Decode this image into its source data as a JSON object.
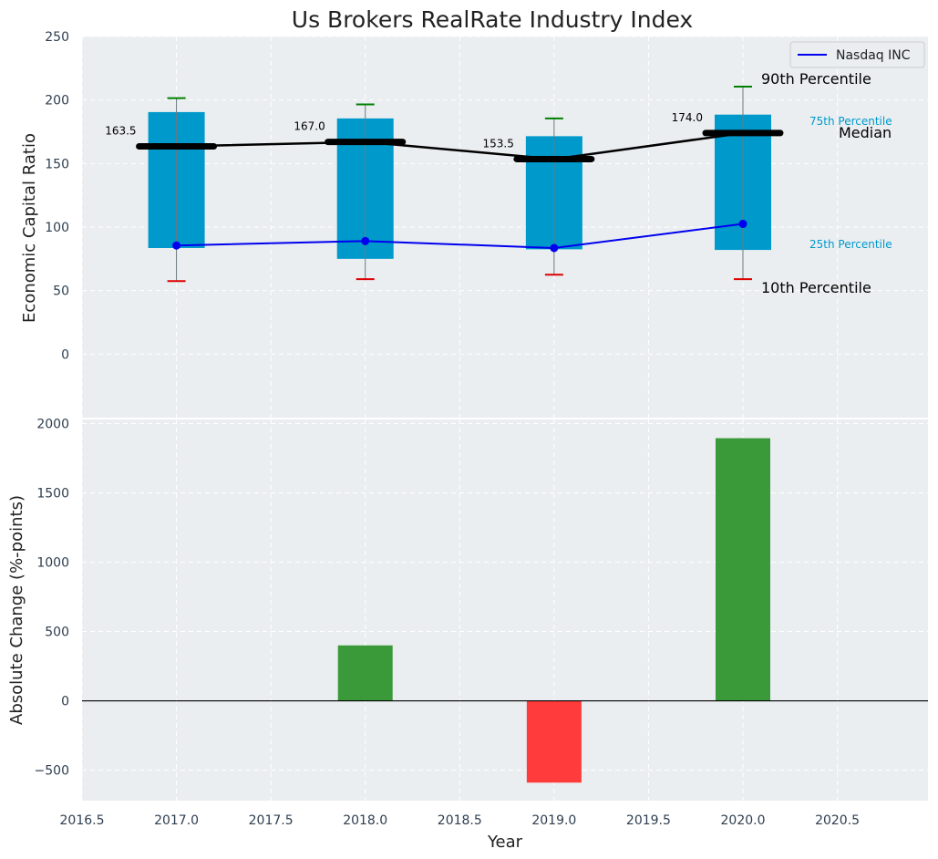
{
  "chart_data": [
    {
      "type": "box",
      "title": "Us Brokers RealRate Industry Index",
      "xlabel": "",
      "ylabel": "Economic Capital Ratio",
      "ylim": [
        -50,
        250
      ],
      "xlim": [
        2016.5,
        2020.98
      ],
      "grid": true,
      "legend_position": "top-right",
      "yticks": [
        0,
        50,
        100,
        150,
        200,
        250
      ],
      "years": [
        2017,
        2018,
        2019,
        2020
      ],
      "percentiles": {
        "p10": [
          57.5,
          59.0,
          62.5,
          59.0
        ],
        "p25": [
          83.5,
          75.0,
          82.5,
          82.0
        ],
        "median": [
          163.5,
          167.0,
          153.5,
          174.0
        ],
        "p75": [
          190.5,
          185.5,
          171.5,
          188.5
        ],
        "p90": [
          201.5,
          196.5,
          185.5,
          210.5
        ]
      },
      "median_labels": [
        "163.5",
        "167.0",
        "153.5",
        "174.0"
      ],
      "series": [
        {
          "name": "Nasdaq INC",
          "values": [
            85.5,
            89.0,
            83.5,
            102.5
          ]
        }
      ],
      "annotations": {
        "p90": "90th Percentile",
        "p75": "75th Percentile",
        "median": "Median",
        "p25": "25th Percentile",
        "p10": "10th Percentile"
      },
      "colors": {
        "box": "#0099cc",
        "median": "#000000",
        "company": "#0000ee",
        "whisker_high": "#008000",
        "whisker_low": "#dd0000",
        "percentile_text": "#0099cc",
        "background": "#eaeef0"
      }
    },
    {
      "type": "bar",
      "title": "",
      "xlabel": "Year",
      "ylabel": "Absolute Change (%-points)",
      "ylim": [
        -720,
        2030
      ],
      "xlim": [
        2016.5,
        2020.98
      ],
      "grid": true,
      "yticks": [
        -500,
        0,
        500,
        1000,
        1500,
        2000
      ],
      "xticks": [
        2016.5,
        2017.0,
        2017.5,
        2018.0,
        2018.5,
        2019.0,
        2019.5,
        2020.0,
        2020.5
      ],
      "x": [
        2018,
        2019,
        2020
      ],
      "values": [
        400,
        -590,
        1895
      ],
      "colors": {
        "positive": "#3a9a3a",
        "negative": "#ff3b3b"
      }
    }
  ]
}
